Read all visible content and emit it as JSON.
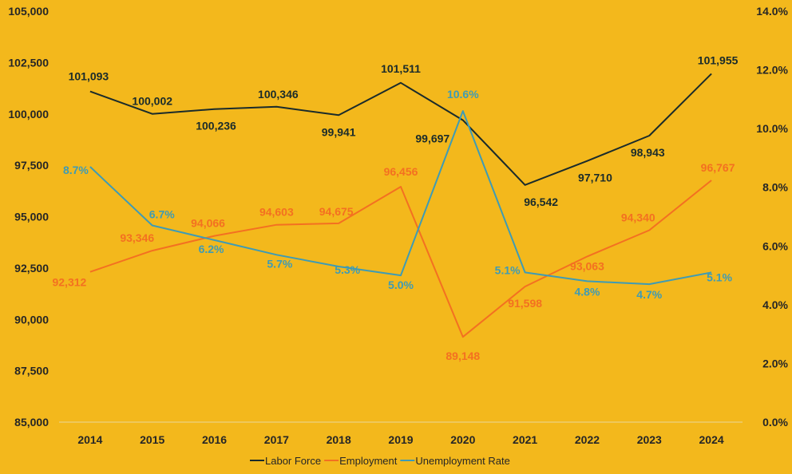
{
  "chart_data": {
    "type": "line",
    "categories": [
      "2014",
      "2015",
      "2016",
      "2017",
      "2018",
      "2019",
      "2020",
      "2021",
      "2022",
      "2023",
      "2024"
    ],
    "ylim_left": [
      85000,
      105000
    ],
    "ylim_right": [
      0.0,
      14.0
    ],
    "y_ticks_left": [
      "85,000",
      "87,500",
      "90,000",
      "92,500",
      "95,000",
      "97,500",
      "100,000",
      "102,500",
      "105,000"
    ],
    "y_ticks_right": [
      "0.0%",
      "2.0%",
      "4.0%",
      "6.0%",
      "8.0%",
      "10.0%",
      "12.0%",
      "14.0%"
    ],
    "grid": false,
    "legend_position": "bottom",
    "series": [
      {
        "name": "Labor Force",
        "axis": "left",
        "color": "#1A2B2B",
        "values": [
          101093,
          100002,
          100236,
          100346,
          99941,
          101511,
          99697,
          96542,
          97710,
          98943,
          101955
        ],
        "labels": [
          "101,093",
          "100,002",
          "100,236",
          "100,346",
          "99,941",
          "101,511",
          "99,697",
          "96,542",
          "97,710",
          "98,943",
          "101,955"
        ]
      },
      {
        "name": "Employment",
        "axis": "left",
        "color": "#F37021",
        "values": [
          92312,
          93346,
          94066,
          94603,
          94675,
          96456,
          89148,
          91598,
          93063,
          94340,
          96767
        ],
        "labels": [
          "92,312",
          "93,346",
          "94,066",
          "94,603",
          "94,675",
          "96,456",
          "89,148",
          "91,598",
          "93,063",
          "94,340",
          "96,767"
        ]
      },
      {
        "name": "Unemployment Rate",
        "axis": "right",
        "color": "#3E9BB5",
        "values": [
          8.7,
          6.7,
          6.2,
          5.7,
          5.3,
          5.0,
          10.6,
          5.1,
          4.8,
          4.7,
          5.1
        ],
        "labels": [
          "8.7%",
          "6.7%",
          "6.2%",
          "5.7%",
          "5.3%",
          "5.0%",
          "10.6%",
          "5.1%",
          "4.8%",
          "4.7%",
          "5.1%"
        ]
      }
    ]
  }
}
